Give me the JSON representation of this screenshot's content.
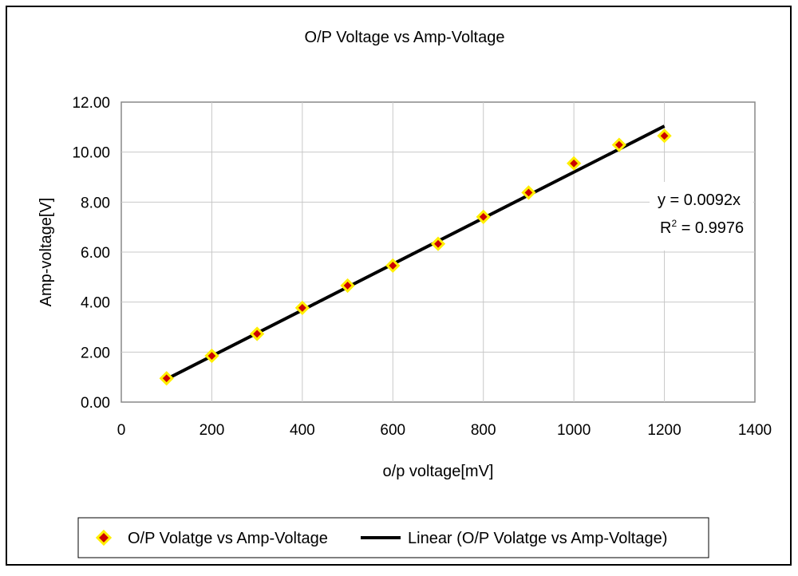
{
  "chart_data": {
    "type": "scatter",
    "title": "O/P Voltage vs Amp-Voltage",
    "xlabel": "o/p voltage[mV]",
    "ylabel": "Amp-voltage[V]",
    "xlim": [
      0,
      1400
    ],
    "ylim": [
      0,
      12
    ],
    "x_ticks": [
      "0",
      "200",
      "400",
      "600",
      "800",
      "1000",
      "1200",
      "1400"
    ],
    "y_ticks": [
      "0.00",
      "2.00",
      "4.00",
      "6.00",
      "8.00",
      "10.00",
      "12.00"
    ],
    "grid": true,
    "legend_position": "bottom",
    "series": [
      {
        "name": "O/P Volatge vs Amp-Voltage",
        "marker": "diamond",
        "marker_fill": "#cc0000",
        "marker_edge": "#ffee00",
        "x": [
          100,
          200,
          300,
          400,
          500,
          600,
          700,
          800,
          900,
          1000,
          1100,
          1200
        ],
        "y": [
          0.95,
          1.85,
          2.73,
          3.77,
          4.66,
          5.46,
          6.33,
          7.41,
          8.38,
          9.55,
          10.29,
          10.65
        ]
      }
    ],
    "trendline": {
      "name": "Linear (O/P Volatge vs Amp-Voltage)",
      "type": "linear",
      "slope": 0.0092,
      "intercept": 0,
      "x_range": [
        100,
        1200
      ],
      "color": "#000000",
      "equation": "y = 0.0092x",
      "r2_prefix": "R",
      "r2_sup": "2",
      "r2_suffix": " = 0.9976"
    }
  }
}
